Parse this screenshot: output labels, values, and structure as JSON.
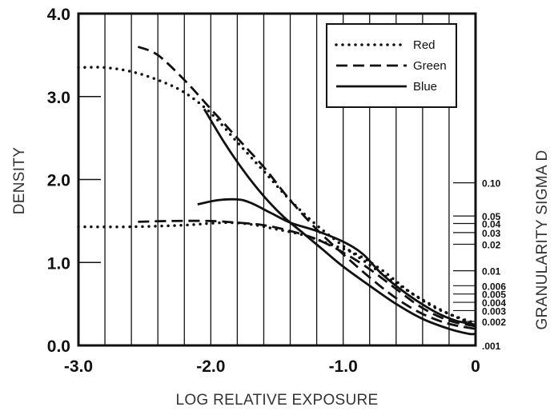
{
  "chart_data": {
    "type": "line",
    "xlabel": "LOG RELATIVE EXPOSURE",
    "ylabel": "DENSITY",
    "y2label": "GRANULARITY SIGMA D",
    "xlim": [
      -3.0,
      0.0
    ],
    "ylim": [
      0.0,
      4.0
    ],
    "x_ticks": [
      -3.0,
      -2.0,
      -1.0,
      0.0
    ],
    "x_tick_labels": [
      "-3.0",
      "-2.0",
      "-1.0",
      "0"
    ],
    "y_ticks": [
      0.0,
      1.0,
      2.0,
      3.0,
      4.0
    ],
    "y_tick_labels": [
      "0.0",
      "1.0",
      "2.0",
      "3.0",
      "4.0"
    ],
    "granularity_ticks": [
      {
        "label": "0.10",
        "density": 1.96
      },
      {
        "label": "0.05",
        "density": 1.56
      },
      {
        "label": "0.04",
        "density": 1.47
      },
      {
        "label": "0.03",
        "density": 1.36
      },
      {
        "label": "0.02",
        "density": 1.22
      },
      {
        "label": "0.01",
        "density": 0.9
      },
      {
        "label": "0.006",
        "density": 0.72
      },
      {
        "label": "0.005",
        "density": 0.62
      },
      {
        "label": "0.004",
        "density": 0.52
      },
      {
        "label": "0.003",
        "density": 0.42
      },
      {
        "label": "0.002",
        "density": 0.29
      },
      {
        "label": ".001",
        "density": 0.0
      }
    ],
    "grid": "vertical lines every 0.2 log exposure",
    "legend_position": "top-right",
    "series": [
      {
        "name": "Red",
        "style": "dotted",
        "density_curve": [
          [
            -3.0,
            3.35
          ],
          [
            -2.8,
            3.35
          ],
          [
            -2.6,
            3.3
          ],
          [
            -2.4,
            3.2
          ],
          [
            -2.2,
            3.05
          ],
          [
            -2.0,
            2.8
          ],
          [
            -1.8,
            2.45
          ],
          [
            -1.6,
            2.1
          ],
          [
            -1.4,
            1.75
          ],
          [
            -1.2,
            1.45
          ],
          [
            -1.0,
            1.2
          ],
          [
            -0.8,
            0.97
          ],
          [
            -0.6,
            0.75
          ],
          [
            -0.4,
            0.55
          ],
          [
            -0.2,
            0.38
          ],
          [
            0.0,
            0.25
          ]
        ],
        "granularity_curve": [
          [
            -3.0,
            1.43
          ],
          [
            -2.6,
            1.43
          ],
          [
            -2.2,
            1.45
          ],
          [
            -1.9,
            1.48
          ],
          [
            -1.7,
            1.46
          ],
          [
            -1.5,
            1.4
          ],
          [
            -1.3,
            1.33
          ],
          [
            -1.1,
            1.22
          ],
          [
            -0.9,
            1.1
          ],
          [
            -0.7,
            0.9
          ],
          [
            -0.5,
            0.65
          ],
          [
            -0.3,
            0.45
          ],
          [
            -0.1,
            0.32
          ],
          [
            0.0,
            0.27
          ]
        ]
      },
      {
        "name": "Green",
        "style": "dashed",
        "density_curve": [
          [
            -2.55,
            3.6
          ],
          [
            -2.4,
            3.5
          ],
          [
            -2.2,
            3.2
          ],
          [
            -2.0,
            2.85
          ],
          [
            -1.8,
            2.5
          ],
          [
            -1.6,
            2.15
          ],
          [
            -1.4,
            1.75
          ],
          [
            -1.2,
            1.4
          ],
          [
            -1.0,
            1.1
          ],
          [
            -0.8,
            0.82
          ],
          [
            -0.6,
            0.57
          ],
          [
            -0.4,
            0.38
          ],
          [
            -0.2,
            0.26
          ],
          [
            0.0,
            0.2
          ]
        ],
        "granularity_curve": [
          [
            -2.55,
            1.49
          ],
          [
            -2.3,
            1.5
          ],
          [
            -2.0,
            1.5
          ],
          [
            -1.8,
            1.48
          ],
          [
            -1.6,
            1.45
          ],
          [
            -1.4,
            1.38
          ],
          [
            -1.2,
            1.28
          ],
          [
            -1.0,
            1.12
          ],
          [
            -0.8,
            0.92
          ],
          [
            -0.6,
            0.68
          ],
          [
            -0.4,
            0.45
          ],
          [
            -0.2,
            0.3
          ],
          [
            0.0,
            0.23
          ]
        ]
      },
      {
        "name": "Blue",
        "style": "solid",
        "density_curve": [
          [
            -2.05,
            2.85
          ],
          [
            -1.9,
            2.45
          ],
          [
            -1.75,
            2.1
          ],
          [
            -1.6,
            1.8
          ],
          [
            -1.45,
            1.55
          ],
          [
            -1.3,
            1.35
          ],
          [
            -1.15,
            1.15
          ],
          [
            -1.0,
            0.95
          ],
          [
            -0.8,
            0.72
          ],
          [
            -0.6,
            0.5
          ],
          [
            -0.4,
            0.32
          ],
          [
            -0.2,
            0.2
          ],
          [
            -0.05,
            0.14
          ],
          [
            0.0,
            0.14
          ]
        ],
        "granularity_curve": [
          [
            -2.1,
            1.7
          ],
          [
            -1.95,
            1.75
          ],
          [
            -1.8,
            1.76
          ],
          [
            -1.7,
            1.72
          ],
          [
            -1.55,
            1.6
          ],
          [
            -1.4,
            1.48
          ],
          [
            -1.2,
            1.38
          ],
          [
            -1.0,
            1.25
          ],
          [
            -0.85,
            1.1
          ],
          [
            -0.7,
            0.85
          ],
          [
            -0.5,
            0.6
          ],
          [
            -0.3,
            0.4
          ],
          [
            -0.15,
            0.3
          ],
          [
            0.0,
            0.25
          ]
        ]
      }
    ]
  }
}
